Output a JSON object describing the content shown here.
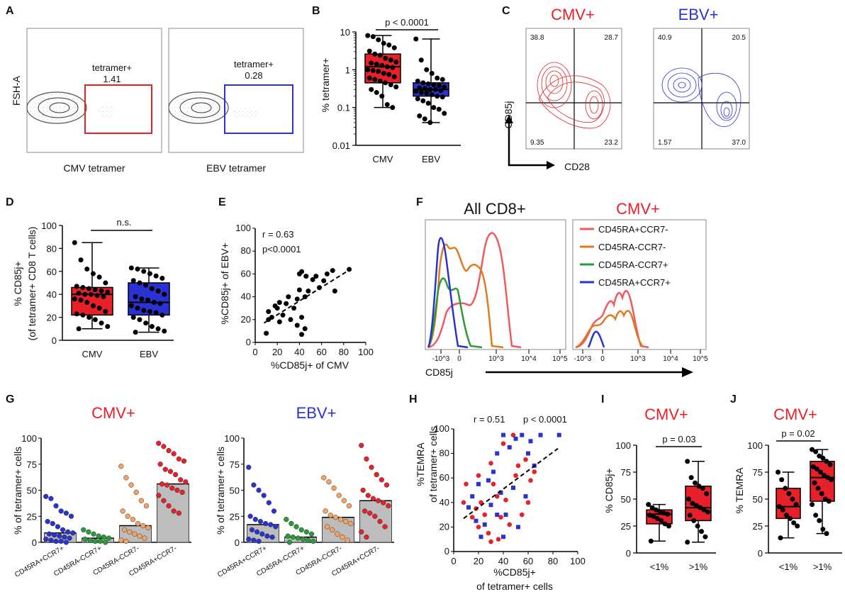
{
  "colors": {
    "cmv": "#e8202a",
    "ebv": "#2a33d1",
    "orange": "#e07a20",
    "green": "#2a9a3a",
    "pink": "#ee5a60",
    "gray": "#bdbdbd",
    "lightorange": "#f4a460",
    "navy": "#1a2a8a",
    "darkgreen": "#1f7a2a",
    "darkred": "#c8101a"
  },
  "chart_data": [
    {
      "panel": "A",
      "type": "scatter",
      "plots": [
        {
          "xlabel": "CMV tetramer",
          "ylabel": "FSH-A",
          "gate_label": "tetramer+",
          "gate_value": "1.41",
          "gate_color": "#e8202a"
        },
        {
          "xlabel": "EBV tetramer",
          "ylabel": "",
          "gate_label": "tetramer+",
          "gate_value": "0.28",
          "gate_color": "#2a33d1"
        }
      ]
    },
    {
      "panel": "B",
      "type": "box",
      "scale": "log",
      "ylim": [
        0.01,
        10
      ],
      "ylabel": "% tetramer+",
      "yticks": [
        "0.01",
        "0.1",
        "1",
        "10"
      ],
      "categories": [
        "CMV",
        "EBV"
      ],
      "annotation": "p < 0.0001",
      "boxes": [
        {
          "name": "CMV",
          "min": 0.1,
          "q1": 0.45,
          "median": 1.2,
          "q3": 2.6,
          "max": 8.0,
          "color": "#e8202a",
          "points": [
            8,
            7.5,
            6.2,
            5.0,
            4.5,
            3.8,
            3.1,
            2.6,
            2.4,
            2.0,
            1.8,
            1.6,
            1.5,
            1.4,
            1.3,
            1.2,
            1.15,
            1.0,
            0.95,
            0.9,
            0.8,
            0.75,
            0.65,
            0.6,
            0.55,
            0.5,
            0.45,
            0.4,
            0.35,
            0.3,
            0.25,
            0.2,
            0.12,
            0.1
          ]
        },
        {
          "name": "EBV",
          "min": 0.04,
          "q1": 0.2,
          "median": 0.3,
          "q3": 0.45,
          "max": 6.5,
          "color": "#2a33d1",
          "points": [
            6.5,
            1.8,
            1.0,
            0.8,
            0.6,
            0.55,
            0.5,
            0.45,
            0.42,
            0.4,
            0.38,
            0.35,
            0.33,
            0.32,
            0.3,
            0.3,
            0.28,
            0.27,
            0.25,
            0.24,
            0.22,
            0.2,
            0.19,
            0.17,
            0.15,
            0.13,
            0.1,
            0.09,
            0.07,
            0.06,
            0.05,
            0.04
          ]
        }
      ]
    },
    {
      "panel": "C",
      "type": "scatter",
      "xlabel": "CD28",
      "ylabel": "CD85j",
      "plots": [
        {
          "title": "CMV+",
          "color": "#e8202a",
          "quadrants": [
            "38.8",
            "28.7",
            "9.35",
            "23.2"
          ]
        },
        {
          "title": "EBV+",
          "color": "#2a33d1",
          "quadrants": [
            "40.9",
            "20.5",
            "1.57",
            "37.0"
          ]
        }
      ]
    },
    {
      "panel": "D",
      "type": "box",
      "ylim": [
        0,
        100
      ],
      "ylabel": "% CD85j+",
      "ylabel2": "(of tetramer+ CD8 T cells)",
      "yticks": [
        "0",
        "20",
        "40",
        "60",
        "80",
        "100"
      ],
      "categories": [
        "CMV",
        "EBV"
      ],
      "annotation": "n.s.",
      "boxes": [
        {
          "name": "CMV",
          "min": 10,
          "q1": 22,
          "median": 40,
          "q3": 46,
          "max": 85,
          "color": "#e8202a",
          "points": [
            85,
            70,
            62,
            58,
            55,
            50,
            47,
            46,
            45,
            44,
            43,
            42,
            41,
            40,
            40,
            39,
            38,
            36,
            35,
            33,
            30,
            28,
            25,
            23,
            22,
            20,
            18,
            15,
            12,
            10
          ]
        },
        {
          "name": "EBV",
          "min": 7,
          "q1": 22,
          "median": 33,
          "q3": 50,
          "max": 63,
          "color": "#2a33d1",
          "points": [
            63,
            62,
            60,
            58,
            56,
            54,
            52,
            50,
            48,
            45,
            43,
            40,
            38,
            36,
            35,
            33,
            32,
            30,
            28,
            26,
            25,
            24,
            22,
            20,
            18,
            15,
            12,
            10,
            8,
            7
          ]
        }
      ]
    },
    {
      "panel": "E",
      "type": "scatter",
      "xlim": [
        0,
        100
      ],
      "ylim": [
        0,
        100
      ],
      "xlabel": "%CD85j+ of CMV",
      "ylabel": "%CD85j+ of EBV+",
      "xticks": [
        "0",
        "20",
        "40",
        "60",
        "80",
        "100"
      ],
      "yticks": [
        "0",
        "20",
        "40",
        "60",
        "80",
        "100"
      ],
      "stat_r": "r = 0.63",
      "stat_p": "p<0.0001",
      "points": [
        [
          10,
          8
        ],
        [
          12,
          20
        ],
        [
          12,
          27
        ],
        [
          15,
          22
        ],
        [
          18,
          32
        ],
        [
          20,
          30
        ],
        [
          22,
          18
        ],
        [
          22,
          35
        ],
        [
          25,
          24
        ],
        [
          28,
          34
        ],
        [
          30,
          40
        ],
        [
          32,
          20
        ],
        [
          35,
          30
        ],
        [
          38,
          15
        ],
        [
          38,
          38
        ],
        [
          40,
          46
        ],
        [
          40,
          60
        ],
        [
          42,
          62
        ],
        [
          42,
          22
        ],
        [
          42,
          7
        ],
        [
          45,
          12
        ],
        [
          45,
          40
        ],
        [
          46,
          58
        ],
        [
          48,
          45
        ],
        [
          52,
          55
        ],
        [
          55,
          58
        ],
        [
          58,
          48
        ],
        [
          62,
          54
        ],
        [
          65,
          60
        ],
        [
          70,
          63
        ],
        [
          72,
          45
        ],
        [
          85,
          64
        ]
      ],
      "fit": [
        [
          8,
          17
        ],
        [
          86,
          64
        ]
      ]
    },
    {
      "panel": "F",
      "type": "line",
      "xlabel": "CD85j",
      "xticks": [
        "-10^3",
        "0",
        "10^3",
        "10^4",
        "10^5"
      ],
      "plots": [
        {
          "title": "All CD8+",
          "title_color": "#111111"
        },
        {
          "title": "CMV+",
          "title_color": "#e8202a"
        }
      ],
      "legend": [
        {
          "name": "CD45RA+CCR7-",
          "color": "#ee5a60"
        },
        {
          "name": "CD45RA-CCR7-",
          "color": "#e07a20"
        },
        {
          "name": "CD45RA-CCR7+",
          "color": "#2a9a3a"
        },
        {
          "name": "CD45RA+CCR7+",
          "color": "#2a33d1"
        }
      ]
    },
    {
      "panel": "G",
      "type": "bar",
      "ylim": [
        0,
        100
      ],
      "ylabel": "% of tetramer+ cells",
      "yticks": [
        "0",
        "25",
        "50",
        "75",
        "100"
      ],
      "categories": [
        "CD45RA+CCR7+",
        "CD45RA-CCR7+",
        "CD45RA-CCR7-",
        "CD45RA+CCR7-"
      ],
      "panels": [
        {
          "title": "CMV+",
          "title_color": "#e8202a",
          "values": [
            9,
            4,
            16,
            56
          ],
          "points": [
            [
              44,
              42,
              35,
              30,
              28,
              25,
              20,
              18,
              15,
              12,
              10,
              9,
              8,
              7,
              6,
              5,
              4,
              3,
              2,
              1,
              1,
              0
            ],
            [
              12,
              10,
              8,
              6,
              5,
              4,
              3,
              2,
              1,
              1,
              0
            ],
            [
              73,
              62,
              55,
              48,
              40,
              35,
              30,
              25,
              22,
              18,
              16,
              14,
              12,
              10,
              8,
              6,
              4,
              2,
              1
            ],
            [
              95,
              92,
              88,
              85,
              80,
              78,
              75,
              70,
              68,
              65,
              60,
              58,
              56,
              55,
              52,
              50,
              48,
              45,
              40,
              35,
              30,
              28
            ]
          ]
        },
        {
          "title": "EBV+",
          "title_color": "#2a33d1",
          "values": [
            17,
            5,
            24,
            40
          ],
          "points": [
            [
              72,
              55,
              50,
              45,
              38,
              30,
              25,
              22,
              20,
              18,
              17,
              15,
              12,
              10,
              8,
              6,
              5,
              3,
              2,
              1
            ],
            [
              22,
              18,
              15,
              12,
              10,
              8,
              6,
              5,
              4,
              3,
              2,
              1,
              0
            ],
            [
              62,
              58,
              52,
              45,
              40,
              35,
              30,
              26,
              24,
              22,
              20,
              18,
              15,
              12,
              8,
              5,
              2
            ],
            [
              93,
              80,
              72,
              65,
              60,
              55,
              50,
              45,
              42,
              40,
              38,
              35,
              30,
              28,
              25,
              20,
              15,
              10,
              5
            ]
          ]
        }
      ]
    },
    {
      "panel": "H",
      "type": "scatter",
      "xlim": [
        0,
        100
      ],
      "ylim": [
        0,
        100
      ],
      "xlabel": "%CD85j+",
      "xlabel2": "of tetramer+ cells",
      "ylabel": "%TEMRA",
      "ylabel2": "of tetramer+ cells",
      "xticks": [
        "0",
        "20",
        "40",
        "60",
        "80",
        "100"
      ],
      "yticks": [
        "0",
        "20",
        "40",
        "60",
        "80",
        "100"
      ],
      "stat_r": "r = 0.51",
      "stat_p": "p < 0.0001",
      "series": [
        {
          "name": "CMV",
          "color": "#e8202a",
          "marker": "circle",
          "points": [
            [
              8,
              40
            ],
            [
              10,
              55
            ],
            [
              15,
              28
            ],
            [
              18,
              35
            ],
            [
              20,
              20
            ],
            [
              22,
              40
            ],
            [
              25,
              30
            ],
            [
              28,
              15
            ],
            [
              30,
              72
            ],
            [
              32,
              55
            ],
            [
              35,
              45
            ],
            [
              36,
              10
            ],
            [
              38,
              28
            ],
            [
              40,
              88
            ],
            [
              42,
              42
            ],
            [
              45,
              22
            ],
            [
              48,
              95
            ],
            [
              50,
              62
            ],
            [
              52,
              70
            ],
            [
              55,
              30
            ],
            [
              58,
              75
            ],
            [
              60,
              40
            ],
            [
              62,
              58
            ],
            [
              65,
              65
            ],
            [
              30,
              8
            ],
            [
              20,
              62
            ]
          ]
        },
        {
          "name": "EBV",
          "color": "#2a33d1",
          "marker": "square",
          "points": [
            [
              12,
              36
            ],
            [
              15,
              45
            ],
            [
              18,
              25
            ],
            [
              20,
              55
            ],
            [
              22,
              12
            ],
            [
              25,
              22
            ],
            [
              28,
              58
            ],
            [
              30,
              38
            ],
            [
              32,
              65
            ],
            [
              35,
              80
            ],
            [
              38,
              48
            ],
            [
              40,
              95
            ],
            [
              42,
              30
            ],
            [
              45,
              85
            ],
            [
              48,
              52
            ],
            [
              50,
              92
            ],
            [
              52,
              20
            ],
            [
              55,
              95
            ],
            [
              58,
              45
            ],
            [
              60,
              80
            ],
            [
              62,
              90
            ],
            [
              65,
              70
            ],
            [
              70,
              95
            ],
            [
              85,
              95
            ],
            [
              35,
              30
            ],
            [
              40,
              12
            ]
          ]
        }
      ],
      "fit": [
        [
          8,
          27
        ],
        [
          84,
          84
        ]
      ]
    },
    {
      "panel": "I",
      "type": "box",
      "ylim": [
        0,
        100
      ],
      "title": "CMV+",
      "title_color": "#e8202a",
      "ylabel": "% CD85j+",
      "yticks": [
        "0",
        "25",
        "50",
        "75",
        "100"
      ],
      "categories": [
        "<1%",
        ">1%"
      ],
      "annotation": "p = 0.03",
      "boxes": [
        {
          "name": "<1%",
          "min": 11,
          "q1": 27,
          "median": 36,
          "q3": 40,
          "max": 45,
          "color": "#e8202a",
          "points": [
            45,
            42,
            40,
            38,
            37,
            36,
            35,
            34,
            32,
            30,
            27,
            25,
            11
          ]
        },
        {
          "name": ">1%",
          "min": 10,
          "q1": 30,
          "median": 42,
          "q3": 62,
          "max": 85,
          "color": "#e8202a",
          "points": [
            85,
            70,
            65,
            62,
            60,
            55,
            50,
            46,
            44,
            42,
            40,
            38,
            35,
            30,
            25,
            20,
            15,
            10
          ]
        }
      ]
    },
    {
      "panel": "J",
      "type": "box",
      "ylim": [
        0,
        100
      ],
      "title": "CMV+",
      "title_color": "#e8202a",
      "ylabel": "% TEMRA",
      "yticks": [
        "0",
        "25",
        "50",
        "75",
        "100"
      ],
      "categories": [
        "<1%",
        ">1%"
      ],
      "annotation": "p = 0.02",
      "boxes": [
        {
          "name": "<1%",
          "min": 14,
          "q1": 32,
          "median": 43,
          "q3": 60,
          "max": 75,
          "color": "#e8202a",
          "points": [
            75,
            68,
            60,
            55,
            50,
            45,
            43,
            40,
            35,
            32,
            28,
            25,
            14
          ]
        },
        {
          "name": ">1%",
          "min": 18,
          "q1": 48,
          "median": 70,
          "q3": 85,
          "max": 96,
          "color": "#e8202a",
          "points": [
            96,
            94,
            90,
            88,
            85,
            82,
            80,
            78,
            75,
            72,
            70,
            68,
            65,
            60,
            55,
            50,
            48,
            45,
            35,
            30,
            22,
            18
          ]
        }
      ]
    }
  ]
}
